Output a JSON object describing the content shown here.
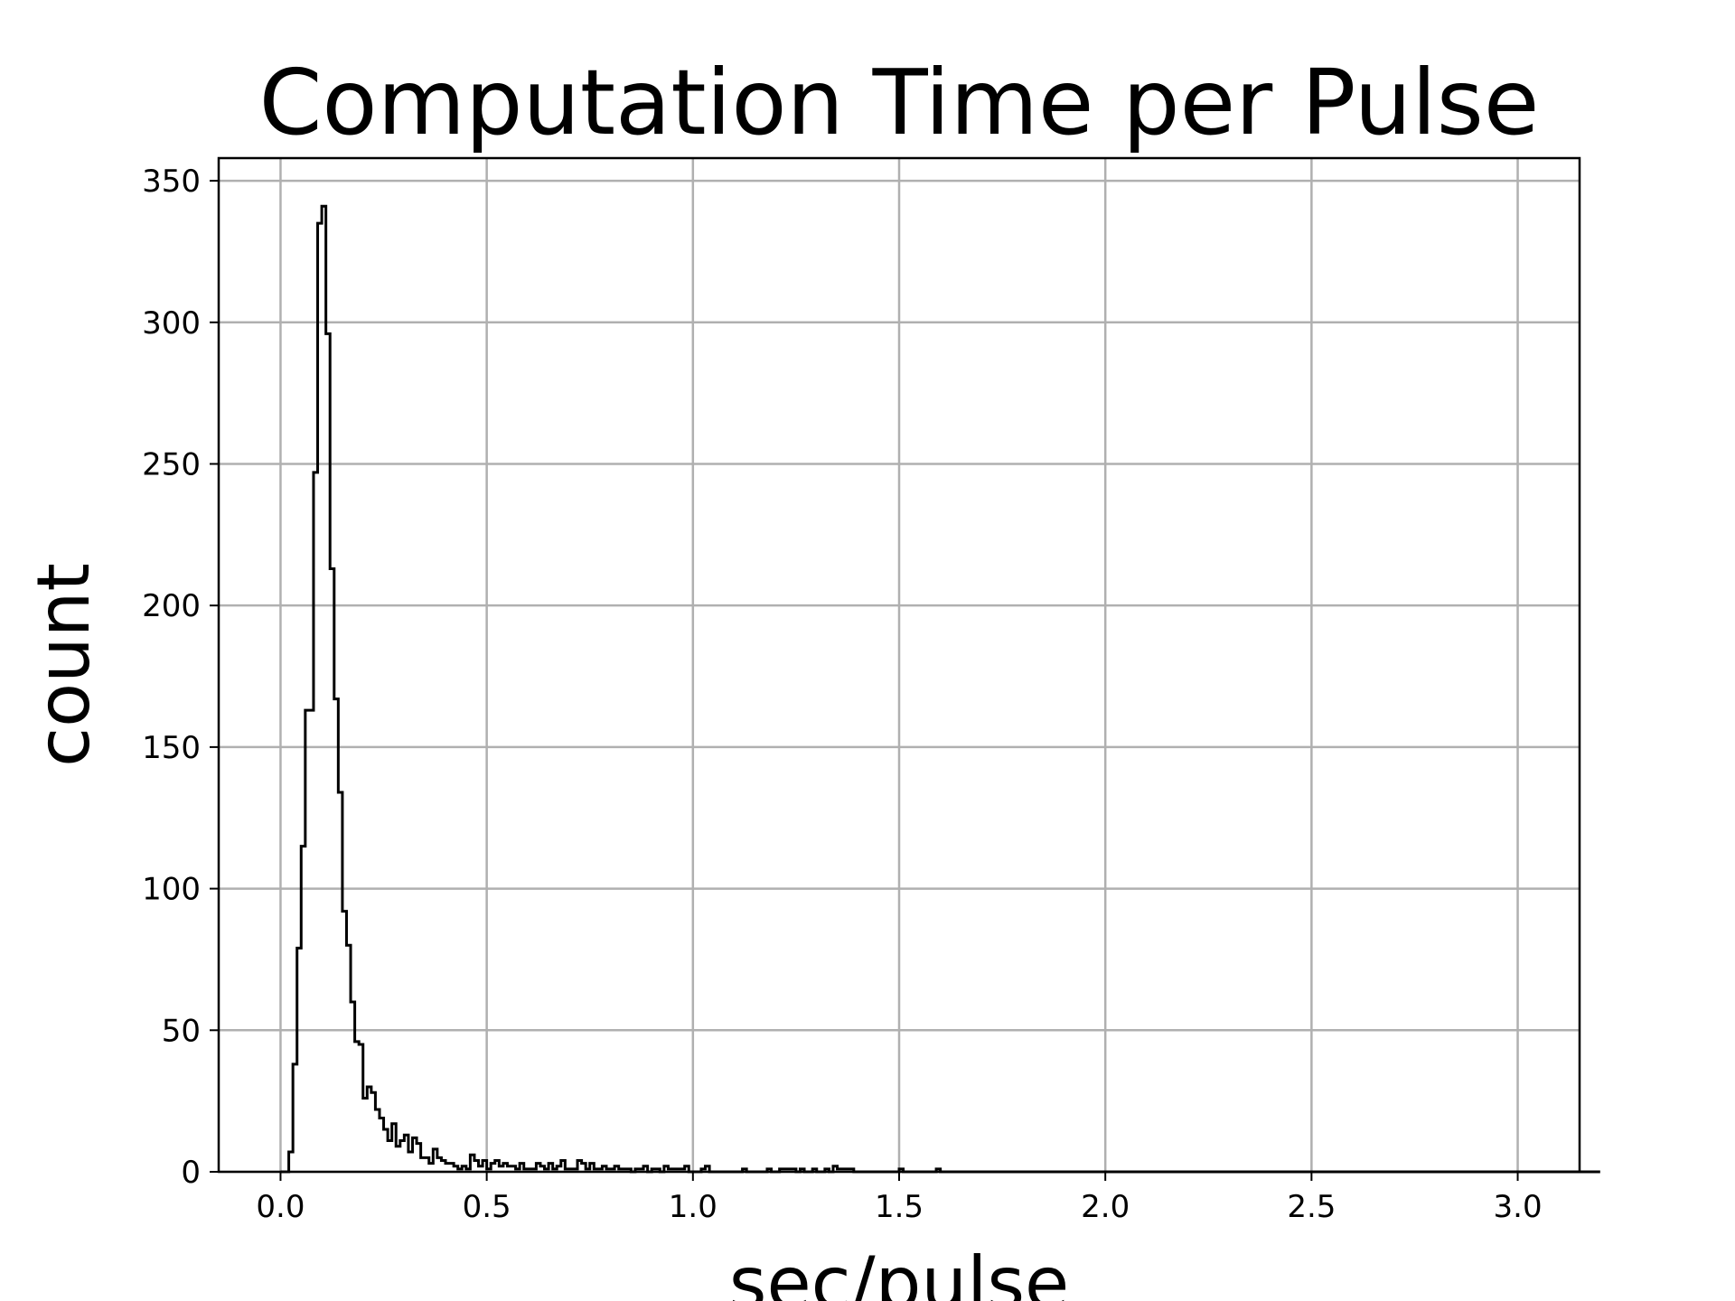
{
  "chart_data": {
    "type": "histogram",
    "title": "Computation Time per Pulse",
    "xlabel": "sec/pulse",
    "ylabel": "count",
    "xlim": [
      -0.15,
      3.15
    ],
    "ylim": [
      0,
      358
    ],
    "grid": true,
    "histtype": "step",
    "line_color": "#000000",
    "grid_color": "#b0b0b0",
    "xticks": [
      0.0,
      0.5,
      1.0,
      1.5,
      2.0,
      2.5,
      3.0
    ],
    "xtick_labels": [
      "0.0",
      "0.5",
      "1.0",
      "1.5",
      "2.0",
      "2.5",
      "3.0"
    ],
    "yticks": [
      0,
      50,
      100,
      150,
      200,
      250,
      300,
      350
    ],
    "ytick_labels": [
      "0",
      "50",
      "100",
      "150",
      "200",
      "250",
      "300",
      "350"
    ],
    "bin_range": [
      0.0,
      3.0
    ],
    "bin_width": 0.01,
    "counts": [
      0,
      0,
      7,
      38,
      79,
      115,
      163,
      163,
      247,
      335,
      341,
      296,
      213,
      167,
      134,
      92,
      80,
      60,
      46,
      45,
      26,
      30,
      28,
      22,
      19,
      15,
      11,
      17,
      9,
      11,
      13,
      7,
      12,
      10,
      5,
      5,
      3,
      8,
      5,
      4,
      3,
      3,
      2,
      1,
      2,
      1,
      6,
      4,
      2,
      4,
      1,
      3,
      4,
      2,
      3,
      2,
      2,
      1,
      3,
      1,
      1,
      1,
      3,
      2,
      1,
      3,
      1,
      2,
      4,
      1,
      1,
      1,
      4,
      3,
      1,
      3,
      1,
      1,
      2,
      1,
      1,
      2,
      1,
      1,
      1,
      0,
      1,
      1,
      2,
      0,
      1,
      1,
      0,
      2,
      1,
      1,
      1,
      1,
      2,
      0,
      0,
      0,
      1,
      2,
      0,
      0,
      0,
      0,
      0,
      0,
      0,
      0,
      1,
      0,
      0,
      0,
      0,
      0,
      1,
      0,
      0,
      1,
      1,
      1,
      1,
      0,
      1,
      0,
      0,
      1,
      0,
      0,
      1,
      0,
      2,
      1,
      1,
      1,
      1,
      0,
      0,
      0,
      0,
      0,
      0,
      0,
      0,
      0,
      0,
      0,
      1,
      0,
      0,
      0,
      0,
      0,
      0,
      0,
      0,
      1,
      0,
      0,
      0,
      0,
      0,
      0,
      0,
      0,
      0,
      0,
      0,
      0,
      0,
      0,
      0,
      0,
      0,
      0,
      0,
      0,
      0,
      0,
      0,
      0,
      0,
      0,
      0,
      0,
      0,
      0,
      0,
      0,
      0,
      0,
      0,
      0,
      0,
      0,
      0,
      0,
      0,
      0,
      0,
      0,
      0,
      0,
      0,
      0,
      0,
      0,
      0,
      0,
      0,
      0,
      0,
      0,
      0,
      0,
      0,
      0,
      0,
      0,
      0,
      0,
      0,
      0,
      0,
      0,
      0,
      0,
      0,
      0,
      0,
      0,
      0,
      0,
      0,
      0,
      0,
      0,
      0,
      0,
      0,
      0,
      0,
      0,
      0,
      0,
      0,
      0,
      0,
      0,
      0,
      0,
      0,
      0,
      0,
      0,
      0,
      0,
      0,
      0,
      0,
      0,
      0,
      0,
      0,
      0,
      0,
      0,
      0,
      0,
      0,
      0,
      0,
      0,
      0,
      0,
      0,
      0,
      0,
      0,
      0,
      0,
      0,
      0,
      0,
      0,
      0,
      0,
      0,
      0,
      0,
      0,
      0,
      0,
      0,
      0,
      0,
      0,
      0,
      0,
      0,
      0,
      0,
      0,
      0,
      0,
      0,
      0,
      0,
      0,
      0,
      0,
      0,
      0,
      0,
      0,
      0,
      0
    ]
  }
}
